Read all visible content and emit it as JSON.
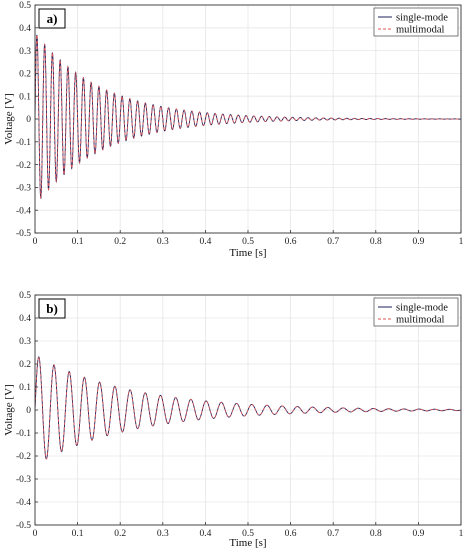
{
  "chart_data": [
    {
      "type": "line",
      "panel_label": "a)",
      "xlabel": "Time [s]",
      "ylabel": "Voltage [V]",
      "xlim": [
        0,
        1
      ],
      "ylim": [
        -0.5,
        0.5
      ],
      "xticks": [
        "0",
        "0.1",
        "0.2",
        "0.3",
        "0.4",
        "0.5",
        "0.6",
        "0.7",
        "0.8",
        "0.9",
        "1"
      ],
      "yticks": [
        "-0.5",
        "-0.4",
        "-0.3",
        "-0.2",
        "-0.1",
        "0",
        "0.1",
        "0.2",
        "0.3",
        "0.4",
        "0.5"
      ],
      "grid": true,
      "legend_position": "top-right",
      "signal": {
        "initial_amplitude": 0.38,
        "decay_rate_per_s": 6.5,
        "frequency_hz": 55
      },
      "series": [
        {
          "name": "single-mode",
          "color": "#1f1f5c",
          "style": "solid"
        },
        {
          "name": "multimodal",
          "color": "#e05555",
          "style": "dashed"
        }
      ]
    },
    {
      "type": "line",
      "panel_label": "b)",
      "xlabel": "Time [s]",
      "ylabel": "Voltage [V]",
      "xlim": [
        0,
        1
      ],
      "ylim": [
        -0.5,
        0.5
      ],
      "xticks": [
        "0",
        "0.1",
        "0.2",
        "0.3",
        "0.4",
        "0.5",
        "0.6",
        "0.7",
        "0.8",
        "0.9",
        "1"
      ],
      "yticks": [
        "-0.5",
        "-0.4",
        "-0.3",
        "-0.2",
        "-0.1",
        "0",
        "0.1",
        "0.2",
        "0.3",
        "0.4",
        "0.5"
      ],
      "grid": true,
      "legend_position": "top-right",
      "signal": {
        "initial_amplitude": 0.24,
        "decay_rate_per_s": 4.5,
        "frequency_hz": 28
      },
      "series": [
        {
          "name": "single-mode",
          "color": "#1f1f5c",
          "style": "solid"
        },
        {
          "name": "multimodal",
          "color": "#e05555",
          "style": "dashed"
        }
      ]
    }
  ]
}
